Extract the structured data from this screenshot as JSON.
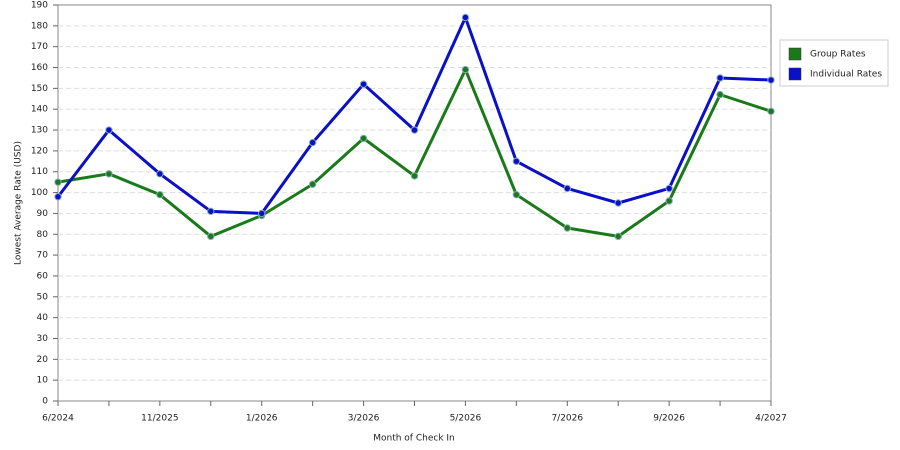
{
  "chart_data": {
    "type": "line",
    "x_label": "Month of Check In",
    "y_label": "Lowest Average Rate (USD)",
    "categories": [
      "6/2024",
      null,
      "11/2025",
      null,
      "1/2026",
      null,
      "3/2026",
      null,
      "5/2026",
      null,
      "7/2026",
      null,
      "9/2026",
      null,
      "4/2027"
    ],
    "series": [
      {
        "name": "Group Rates",
        "color": "#1a7a1a",
        "values": [
          105,
          109,
          99,
          79,
          89,
          104,
          126,
          108,
          159,
          99,
          83,
          79,
          96,
          147,
          139
        ]
      },
      {
        "name": "Individual Rates",
        "color": "#0a10c8",
        "values": [
          98,
          130,
          109,
          91,
          90,
          124,
          152,
          130,
          184,
          115,
          102,
          95,
          102,
          155,
          154
        ]
      }
    ],
    "ylim": [
      0,
      190
    ],
    "yticks": [
      0,
      10,
      20,
      30,
      40,
      50,
      60,
      70,
      80,
      90,
      100,
      110,
      120,
      130,
      140,
      150,
      160,
      170,
      180,
      190
    ],
    "grid": true,
    "legend": "right"
  }
}
